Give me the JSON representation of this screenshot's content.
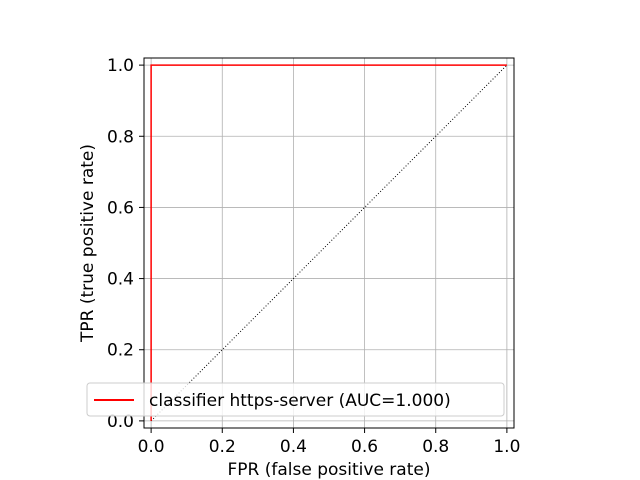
{
  "chart_data": {
    "type": "line",
    "title": "",
    "xlabel": "FPR (false positive rate)",
    "ylabel": "TPR (true positive rate)",
    "xlim": [
      -0.02,
      1.02
    ],
    "ylim": [
      -0.02,
      1.02
    ],
    "xticks": [
      0.0,
      0.2,
      0.4,
      0.6,
      0.8,
      1.0
    ],
    "yticks": [
      0.0,
      0.2,
      0.4,
      0.6,
      0.8,
      1.0
    ],
    "xtick_labels": [
      "0.0",
      "0.2",
      "0.4",
      "0.6",
      "0.8",
      "1.0"
    ],
    "ytick_labels": [
      "0.0",
      "0.2",
      "0.4",
      "0.6",
      "0.8",
      "1.0"
    ],
    "grid": true,
    "legend_position": "lower-left",
    "series": [
      {
        "name": "classifier https-server (AUC=1.000)",
        "color": "#ff0000",
        "style": "solid",
        "x": [
          0.0,
          0.0,
          0.0,
          1.0
        ],
        "y": [
          0.0,
          0.02,
          1.0,
          1.0
        ]
      },
      {
        "color": "#000000",
        "style": "dotted",
        "x": [
          0.0,
          1.0
        ],
        "y": [
          0.0,
          1.0
        ]
      }
    ]
  }
}
